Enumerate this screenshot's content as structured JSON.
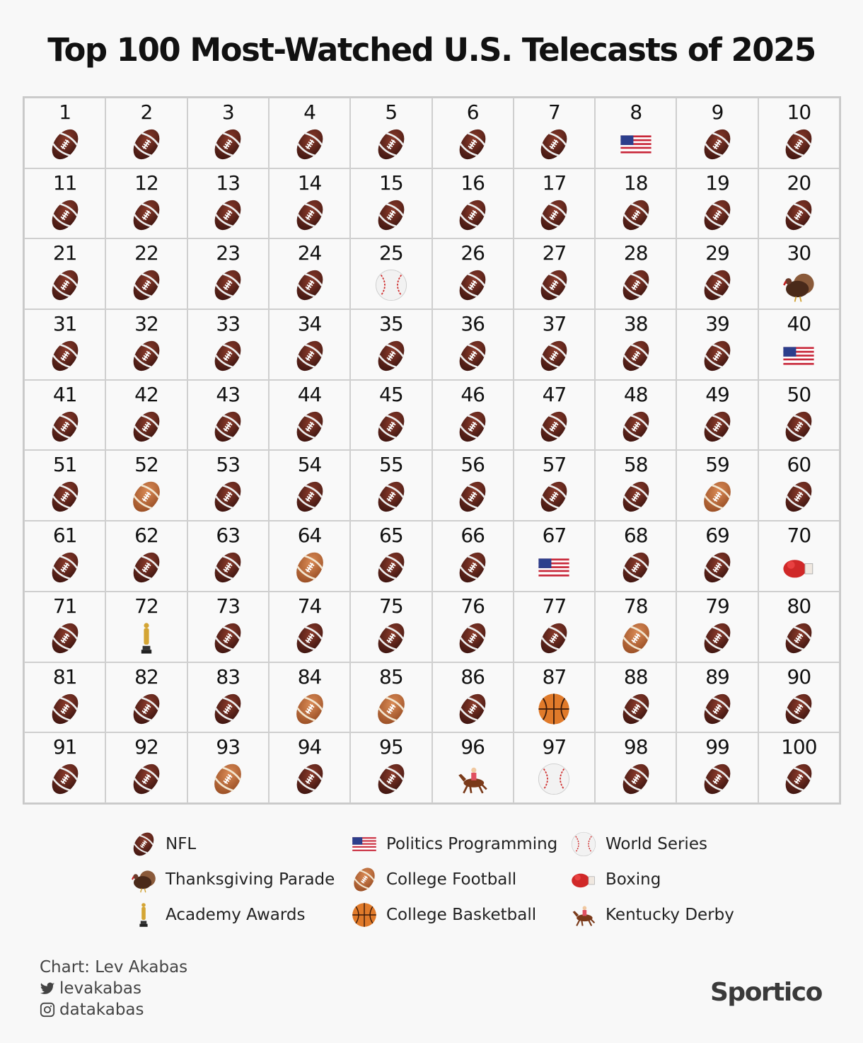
{
  "title": "Top 100 Most-Watched U.S. Telecasts of 2025",
  "chart_data": {
    "type": "waffle",
    "title": "Top 100 Most-Watched U.S. Telecasts of 2025",
    "legend": [
      {
        "key": "nfl",
        "label": "NFL"
      },
      {
        "key": "thanksgiving",
        "label": "Thanksgiving Parade"
      },
      {
        "key": "academy",
        "label": "Academy Awards"
      },
      {
        "key": "politics",
        "label": "Politics Programming"
      },
      {
        "key": "cfb",
        "label": "College Football"
      },
      {
        "key": "cbb",
        "label": "College Basketball"
      },
      {
        "key": "ws",
        "label": "World Series"
      },
      {
        "key": "boxing",
        "label": "Boxing"
      },
      {
        "key": "derby",
        "label": "Kentucky Derby"
      }
    ],
    "cells": [
      {
        "rank": "1",
        "category": "nfl"
      },
      {
        "rank": "2",
        "category": "nfl"
      },
      {
        "rank": "3",
        "category": "nfl"
      },
      {
        "rank": "4",
        "category": "nfl"
      },
      {
        "rank": "5",
        "category": "nfl"
      },
      {
        "rank": "6",
        "category": "nfl"
      },
      {
        "rank": "7",
        "category": "nfl"
      },
      {
        "rank": "8",
        "category": "politics"
      },
      {
        "rank": "9",
        "category": "nfl"
      },
      {
        "rank": "10",
        "category": "nfl"
      },
      {
        "rank": "11",
        "category": "nfl"
      },
      {
        "rank": "12",
        "category": "nfl"
      },
      {
        "rank": "13",
        "category": "nfl"
      },
      {
        "rank": "14",
        "category": "nfl"
      },
      {
        "rank": "15",
        "category": "nfl"
      },
      {
        "rank": "16",
        "category": "nfl"
      },
      {
        "rank": "17",
        "category": "nfl"
      },
      {
        "rank": "18",
        "category": "nfl"
      },
      {
        "rank": "19",
        "category": "nfl"
      },
      {
        "rank": "20",
        "category": "nfl"
      },
      {
        "rank": "21",
        "category": "nfl"
      },
      {
        "rank": "22",
        "category": "nfl"
      },
      {
        "rank": "23",
        "category": "nfl"
      },
      {
        "rank": "24",
        "category": "nfl"
      },
      {
        "rank": "25",
        "category": "ws"
      },
      {
        "rank": "26",
        "category": "nfl"
      },
      {
        "rank": "27",
        "category": "nfl"
      },
      {
        "rank": "28",
        "category": "nfl"
      },
      {
        "rank": "29",
        "category": "nfl"
      },
      {
        "rank": "30",
        "category": "thanksgiving"
      },
      {
        "rank": "31",
        "category": "nfl"
      },
      {
        "rank": "32",
        "category": "nfl"
      },
      {
        "rank": "33",
        "category": "nfl"
      },
      {
        "rank": "34",
        "category": "nfl"
      },
      {
        "rank": "35",
        "category": "nfl"
      },
      {
        "rank": "36",
        "category": "nfl"
      },
      {
        "rank": "37",
        "category": "nfl"
      },
      {
        "rank": "38",
        "category": "nfl"
      },
      {
        "rank": "39",
        "category": "nfl"
      },
      {
        "rank": "40",
        "category": "politics"
      },
      {
        "rank": "41",
        "category": "nfl"
      },
      {
        "rank": "42",
        "category": "nfl"
      },
      {
        "rank": "43",
        "category": "nfl"
      },
      {
        "rank": "44",
        "category": "nfl"
      },
      {
        "rank": "45",
        "category": "nfl"
      },
      {
        "rank": "46",
        "category": "nfl"
      },
      {
        "rank": "47",
        "category": "nfl"
      },
      {
        "rank": "48",
        "category": "nfl"
      },
      {
        "rank": "49",
        "category": "nfl"
      },
      {
        "rank": "50",
        "category": "nfl"
      },
      {
        "rank": "51",
        "category": "nfl"
      },
      {
        "rank": "52",
        "category": "cfb"
      },
      {
        "rank": "53",
        "category": "nfl"
      },
      {
        "rank": "54",
        "category": "nfl"
      },
      {
        "rank": "55",
        "category": "nfl"
      },
      {
        "rank": "56",
        "category": "nfl"
      },
      {
        "rank": "57",
        "category": "nfl"
      },
      {
        "rank": "58",
        "category": "nfl"
      },
      {
        "rank": "59",
        "category": "cfb"
      },
      {
        "rank": "60",
        "category": "nfl"
      },
      {
        "rank": "61",
        "category": "nfl"
      },
      {
        "rank": "62",
        "category": "nfl"
      },
      {
        "rank": "63",
        "category": "nfl"
      },
      {
        "rank": "64",
        "category": "cfb"
      },
      {
        "rank": "65",
        "category": "nfl"
      },
      {
        "rank": "66",
        "category": "nfl"
      },
      {
        "rank": "67",
        "category": "politics"
      },
      {
        "rank": "68",
        "category": "nfl"
      },
      {
        "rank": "69",
        "category": "nfl"
      },
      {
        "rank": "70",
        "category": "boxing"
      },
      {
        "rank": "71",
        "category": "nfl"
      },
      {
        "rank": "72",
        "category": "academy"
      },
      {
        "rank": "73",
        "category": "nfl"
      },
      {
        "rank": "74",
        "category": "nfl"
      },
      {
        "rank": "75",
        "category": "nfl"
      },
      {
        "rank": "76",
        "category": "nfl"
      },
      {
        "rank": "77",
        "category": "nfl"
      },
      {
        "rank": "78",
        "category": "cfb"
      },
      {
        "rank": "79",
        "category": "nfl"
      },
      {
        "rank": "80",
        "category": "nfl"
      },
      {
        "rank": "81",
        "category": "nfl"
      },
      {
        "rank": "82",
        "category": "nfl"
      },
      {
        "rank": "83",
        "category": "nfl"
      },
      {
        "rank": "84",
        "category": "cfb"
      },
      {
        "rank": "85",
        "category": "cfb"
      },
      {
        "rank": "86",
        "category": "nfl"
      },
      {
        "rank": "87",
        "category": "cbb"
      },
      {
        "rank": "88",
        "category": "nfl"
      },
      {
        "rank": "89",
        "category": "nfl"
      },
      {
        "rank": "90",
        "category": "nfl"
      },
      {
        "rank": "91",
        "category": "nfl"
      },
      {
        "rank": "92",
        "category": "nfl"
      },
      {
        "rank": "93",
        "category": "cfb"
      },
      {
        "rank": "94",
        "category": "nfl"
      },
      {
        "rank": "95",
        "category": "nfl"
      },
      {
        "rank": "96",
        "category": "derby"
      },
      {
        "rank": "97",
        "category": "ws"
      },
      {
        "rank": "98",
        "category": "nfl"
      },
      {
        "rank": "99",
        "category": "nfl"
      },
      {
        "rank": "100",
        "category": "nfl"
      }
    ]
  },
  "credits": {
    "chart_by": "Chart: Lev Akabas",
    "twitter": "levakabas",
    "instagram": "datakabas"
  },
  "logo": "Sportico"
}
